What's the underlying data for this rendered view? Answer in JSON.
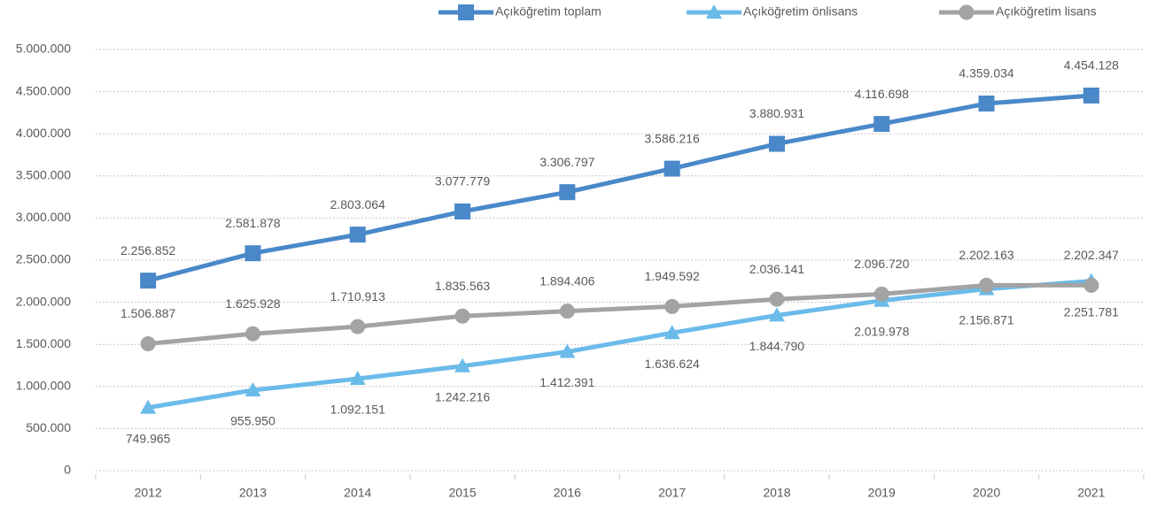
{
  "chart_data": {
    "type": "line",
    "categories": [
      "2012",
      "2013",
      "2014",
      "2015",
      "2016",
      "2017",
      "2018",
      "2019",
      "2020",
      "2021"
    ],
    "series": [
      {
        "name": "Açıköğretim toplam",
        "color": "#4a88c9",
        "marker": "square",
        "label_position": "above",
        "values": [
          2256852,
          2581878,
          2803064,
          3077779,
          3306797,
          3586216,
          3880931,
          4116698,
          4359034,
          4454128
        ],
        "value_labels": [
          "2.256.852",
          "2.581.878",
          "2.803.064",
          "3.077.779",
          "3.306.797",
          "3.586.216",
          "3.880.931",
          "4.116.698",
          "4.359.034",
          "4.454.128"
        ]
      },
      {
        "name": "Açıköğretim önlisans",
        "color": "#6bbbe9",
        "marker": "triangle",
        "label_position": "below",
        "values": [
          749965,
          955950,
          1092151,
          1242216,
          1412391,
          1636624,
          1844790,
          2019978,
          2156871,
          2251781
        ],
        "value_labels": [
          "749.965",
          "955.950",
          "1.092.151",
          "1.242.216",
          "1.412.391",
          "1.636.624",
          "1.844.790",
          "2.019.978",
          "2.156.871",
          "2.251.781"
        ]
      },
      {
        "name": "Açıköğretim lisans",
        "color": "#a3a3a3",
        "marker": "circle",
        "label_position": "above",
        "values": [
          1506887,
          1625928,
          1710913,
          1835563,
          1894406,
          1949592,
          2036141,
          2096720,
          2202163,
          2202347
        ],
        "value_labels": [
          "1.506.887",
          "1.625.928",
          "1.710.913",
          "1.835.563",
          "1.894.406",
          "1.949.592",
          "2.036.141",
          "2.096.720",
          "2.202.163",
          "2.202.347"
        ]
      }
    ],
    "ylim": [
      0,
      5000000
    ],
    "yticks": [
      0,
      {
        "value": 500000,
        "label": "500.000"
      },
      {
        "value": 1000000,
        "label": "1.000.000"
      },
      {
        "value": 1500000,
        "label": "1.500.000"
      },
      {
        "value": 2000000,
        "label": "2.000.000"
      },
      {
        "value": 2500000,
        "label": "2.500.000"
      },
      {
        "value": 3000000,
        "label": "3.000.000"
      },
      {
        "value": 3500000,
        "label": "3.500.000"
      },
      {
        "value": 4000000,
        "label": "4.000.000"
      },
      {
        "value": 4500000,
        "label": "4.500.000"
      },
      {
        "value": 5000000,
        "label": "5.000.000"
      }
    ],
    "grid": true,
    "legend": "top"
  }
}
